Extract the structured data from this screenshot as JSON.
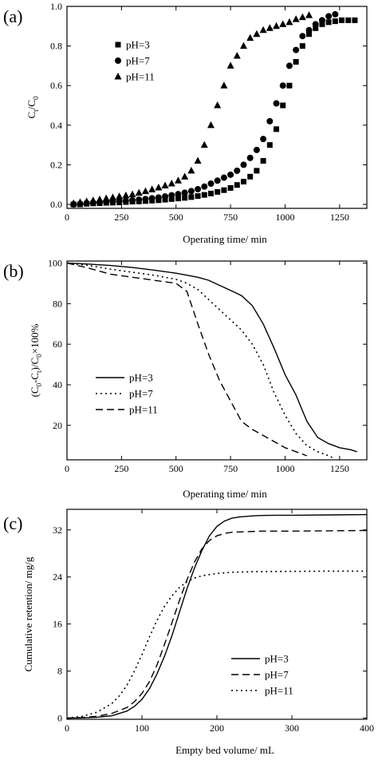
{
  "chart_data": [
    {
      "panel_label": "(a)",
      "type": "scatter",
      "xlabel": "Operating time/ min",
      "ylabel_main": "C",
      "ylabel_sub1": "t",
      "ylabel_mid": "/C",
      "ylabel_sub2": "0",
      "xlim": [
        0,
        1375
      ],
      "ylim": [
        -0.02,
        1.0
      ],
      "xticks": [
        0,
        250,
        500,
        750,
        1000,
        1250
      ],
      "yticks": [
        0.0,
        0.2,
        0.4,
        0.6,
        0.8,
        1.0
      ],
      "legend_position": "top-left",
      "series": [
        {
          "name": "pH=3",
          "marker": "square",
          "x": [
            30,
            60,
            90,
            120,
            150,
            180,
            210,
            240,
            270,
            300,
            330,
            360,
            390,
            420,
            450,
            480,
            510,
            540,
            570,
            600,
            630,
            660,
            690,
            720,
            750,
            780,
            810,
            840,
            870,
            900,
            930,
            960,
            990,
            1020,
            1050,
            1080,
            1110,
            1140,
            1170,
            1200,
            1230,
            1260,
            1290,
            1320
          ],
          "y": [
            0.0,
            0.0,
            0.003,
            0.005,
            0.006,
            0.008,
            0.009,
            0.01,
            0.012,
            0.014,
            0.015,
            0.017,
            0.019,
            0.021,
            0.024,
            0.027,
            0.03,
            0.033,
            0.037,
            0.042,
            0.048,
            0.055,
            0.063,
            0.072,
            0.083,
            0.098,
            0.115,
            0.14,
            0.17,
            0.22,
            0.3,
            0.38,
            0.5,
            0.6,
            0.72,
            0.8,
            0.86,
            0.89,
            0.91,
            0.92,
            0.925,
            0.93,
            0.93,
            0.93
          ]
        },
        {
          "name": "pH=7",
          "marker": "circle",
          "x": [
            30,
            60,
            90,
            120,
            150,
            180,
            210,
            240,
            270,
            300,
            330,
            360,
            390,
            420,
            450,
            480,
            510,
            540,
            570,
            600,
            630,
            660,
            690,
            720,
            750,
            780,
            810,
            840,
            870,
            900,
            930,
            960,
            990,
            1020,
            1050,
            1080,
            1110,
            1140,
            1170,
            1200,
            1230
          ],
          "y": [
            0.0,
            0.003,
            0.006,
            0.008,
            0.01,
            0.012,
            0.014,
            0.016,
            0.018,
            0.021,
            0.024,
            0.027,
            0.031,
            0.035,
            0.04,
            0.046,
            0.052,
            0.059,
            0.067,
            0.077,
            0.09,
            0.105,
            0.12,
            0.135,
            0.15,
            0.17,
            0.2,
            0.235,
            0.275,
            0.33,
            0.42,
            0.51,
            0.6,
            0.7,
            0.78,
            0.85,
            0.88,
            0.91,
            0.93,
            0.95,
            0.96
          ]
        },
        {
          "name": "pH=11",
          "marker": "triangle",
          "x": [
            30,
            60,
            90,
            120,
            150,
            180,
            210,
            240,
            270,
            300,
            330,
            360,
            390,
            420,
            450,
            480,
            510,
            540,
            570,
            600,
            630,
            660,
            690,
            720,
            750,
            780,
            810,
            840,
            870,
            900,
            930,
            960,
            990,
            1020,
            1050,
            1080,
            1110
          ],
          "y": [
            0.005,
            0.01,
            0.015,
            0.02,
            0.025,
            0.03,
            0.035,
            0.04,
            0.045,
            0.05,
            0.058,
            0.066,
            0.075,
            0.085,
            0.095,
            0.105,
            0.12,
            0.14,
            0.17,
            0.22,
            0.3,
            0.4,
            0.5,
            0.6,
            0.7,
            0.75,
            0.8,
            0.84,
            0.86,
            0.88,
            0.89,
            0.9,
            0.91,
            0.92,
            0.935,
            0.945,
            0.955
          ]
        }
      ]
    },
    {
      "panel_label": "(b)",
      "type": "line",
      "xlabel": "Operating time/ min",
      "ylabel_parts": [
        "(C",
        "0",
        "-C",
        "t",
        ")/C",
        "0",
        "×100%"
      ],
      "xlim": [
        0,
        1375
      ],
      "ylim": [
        3,
        101
      ],
      "xticks": [
        0,
        250,
        500,
        750,
        1000,
        1250
      ],
      "yticks": [
        20,
        40,
        60,
        80,
        100
      ],
      "legend_position": "lower-left",
      "series": [
        {
          "name": "pH=3",
          "dash": "solid",
          "x": [
            0,
            100,
            200,
            300,
            400,
            500,
            600,
            650,
            700,
            750,
            800,
            850,
            900,
            950,
            1000,
            1050,
            1100,
            1150,
            1200,
            1250,
            1300,
            1330
          ],
          "y": [
            100,
            99.5,
            98.8,
            97.8,
            96.5,
            95,
            93,
            91.5,
            89,
            86.5,
            84,
            79,
            70,
            58,
            45,
            35,
            22,
            14,
            11,
            9,
            8,
            7
          ]
        },
        {
          "name": "pH=7",
          "dash": "dotted",
          "x": [
            0,
            100,
            200,
            300,
            400,
            500,
            550,
            600,
            650,
            700,
            750,
            800,
            850,
            900,
            950,
            1000,
            1050,
            1100,
            1150,
            1200,
            1220
          ],
          "y": [
            100,
            98.8,
            97,
            95.5,
            94,
            92,
            90,
            87,
            82,
            77,
            72,
            67,
            60,
            50,
            36,
            25,
            16,
            10,
            7,
            5,
            4
          ]
        },
        {
          "name": "pH=11",
          "dash": "dashed",
          "x": [
            0,
            100,
            200,
            300,
            400,
            500,
            550,
            600,
            650,
            700,
            750,
            800,
            850,
            900,
            950,
            1000,
            1050,
            1100
          ],
          "y": [
            100,
            97.5,
            94.5,
            93,
            91.5,
            90,
            86,
            70,
            55,
            42,
            32,
            22,
            18,
            15,
            12,
            9,
            7,
            5
          ]
        }
      ]
    },
    {
      "panel_label": "(c)",
      "type": "line",
      "xlabel": "Empty bed volume/ mL",
      "ylabel": "Cumulative retention/ mg/g",
      "xlim": [
        0,
        400
      ],
      "ylim": [
        -0.2,
        35.5
      ],
      "xticks": [
        0,
        100,
        200,
        300,
        400
      ],
      "yticks": [
        0,
        8,
        16,
        24,
        32
      ],
      "legend_position": "lower-right",
      "series": [
        {
          "name": "pH=3",
          "dash": "solid",
          "x": [
            0,
            20,
            40,
            60,
            80,
            90,
            100,
            110,
            120,
            130,
            140,
            150,
            160,
            170,
            180,
            190,
            200,
            210,
            220,
            230,
            240,
            250,
            260,
            280,
            300,
            350,
            400
          ],
          "y": [
            0,
            0.05,
            0.15,
            0.4,
            1.2,
            2,
            3.2,
            5,
            7.5,
            10.5,
            14,
            18,
            22,
            25.5,
            28.5,
            31,
            32.6,
            33.5,
            34,
            34.2,
            34.3,
            34.4,
            34.45,
            34.5,
            34.5,
            34.55,
            34.6
          ]
        },
        {
          "name": "pH=7",
          "dash": "dashed",
          "x": [
            0,
            20,
            40,
            60,
            80,
            90,
            100,
            110,
            120,
            130,
            140,
            150,
            160,
            170,
            180,
            190,
            200,
            210,
            220,
            240,
            260,
            300,
            350,
            400
          ],
          "y": [
            0,
            0.1,
            0.3,
            0.8,
            1.8,
            2.8,
            4.2,
            6.2,
            9,
            12.5,
            16.2,
            20,
            23.5,
            26.5,
            28.8,
            30.2,
            31,
            31.4,
            31.6,
            31.7,
            31.8,
            31.8,
            31.85,
            31.9
          ]
        },
        {
          "name": "pH=11",
          "dash": "dotted",
          "x": [
            0,
            20,
            40,
            60,
            70,
            80,
            90,
            100,
            110,
            120,
            130,
            140,
            150,
            160,
            170,
            180,
            200,
            220,
            250,
            300,
            350,
            400
          ],
          "y": [
            0,
            0.3,
            1,
            2.5,
            3.8,
            5.6,
            8,
            10.8,
            13.8,
            16.6,
            19,
            20.8,
            22.2,
            23.2,
            23.8,
            24.2,
            24.6,
            24.8,
            24.9,
            24.95,
            25,
            25
          ]
        }
      ]
    }
  ]
}
